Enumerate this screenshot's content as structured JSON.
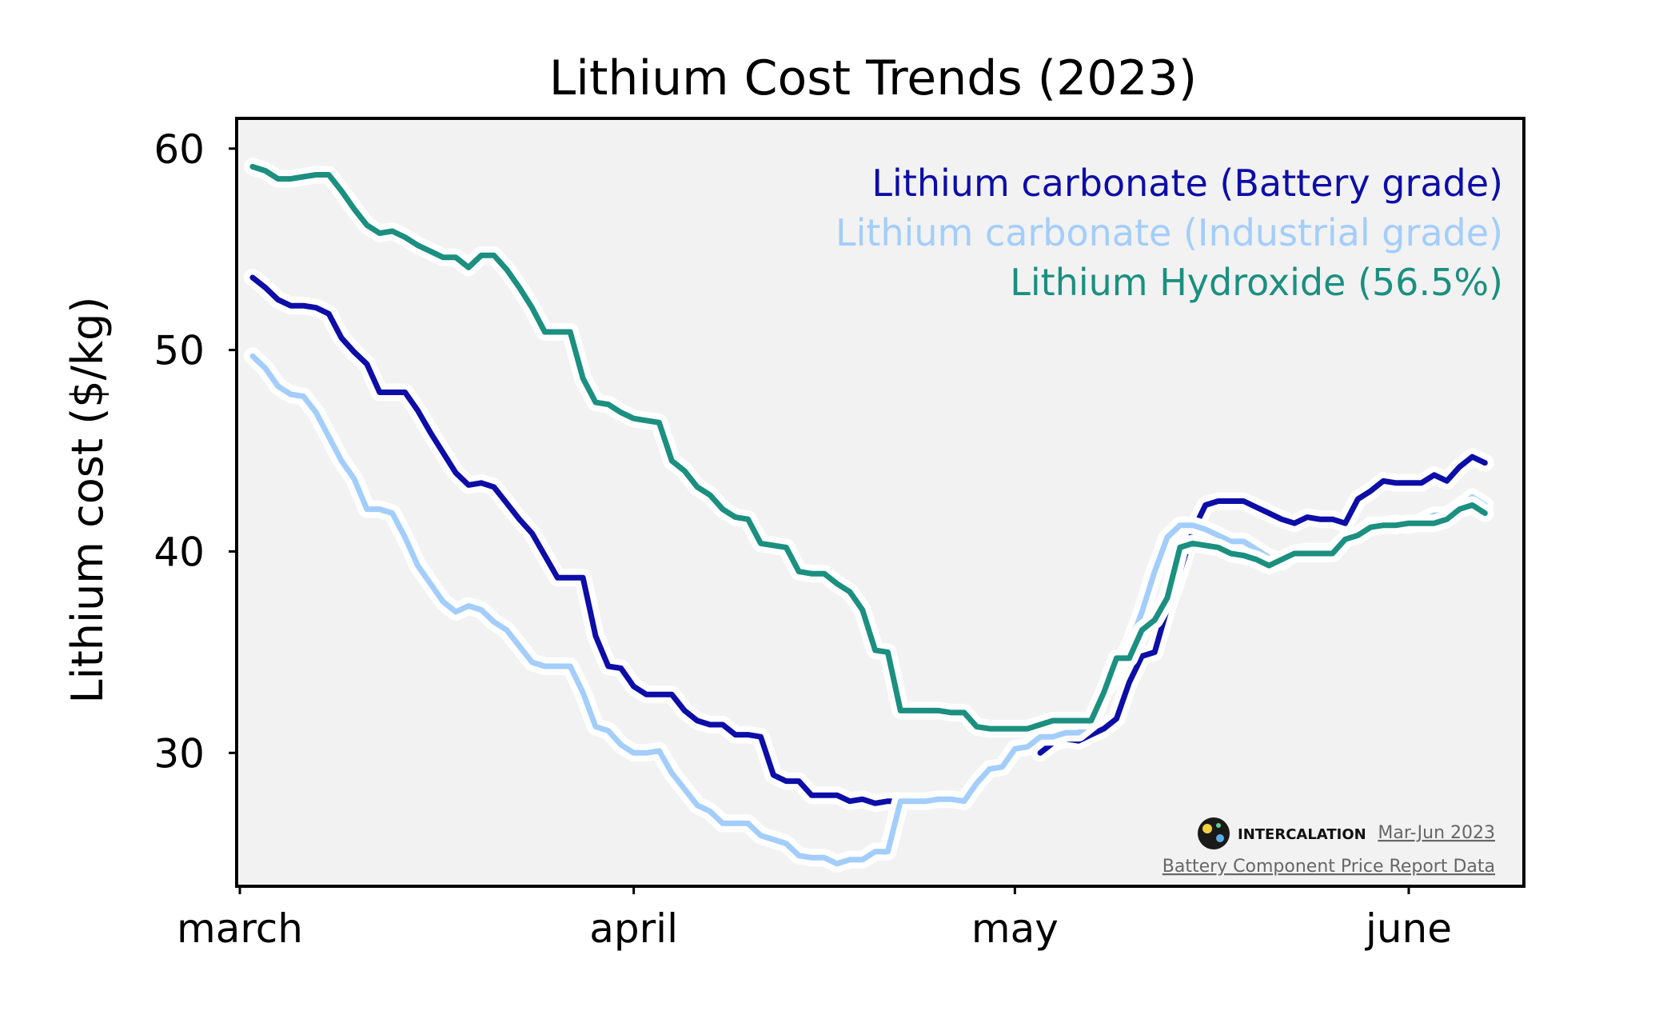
{
  "chart_data": {
    "type": "line",
    "title": "Lithium Cost Trends (2023)",
    "xlabel": "",
    "ylabel": "Lithium cost ($/kg)",
    "x_ticks": [
      {
        "label": "march",
        "day": 0
      },
      {
        "label": "april",
        "day": 31
      },
      {
        "label": "may",
        "day": 61
      },
      {
        "label": "june",
        "day": 92
      }
    ],
    "y_ticks": [
      30,
      40,
      50,
      60
    ],
    "xlim_days": [
      0,
      101
    ],
    "ylim": [
      23.5,
      61.5
    ],
    "grid": false,
    "legend_placement": "top-right",
    "series": [
      {
        "name": "Lithium carbonate (Battery grade)",
        "color": "#0d0da8",
        "points": [
          [
            1,
            53.6
          ],
          [
            2,
            53.1
          ],
          [
            3,
            52.5
          ],
          [
            4,
            52.2
          ],
          [
            5,
            52.2
          ],
          [
            6,
            52.1
          ],
          [
            7,
            51.8
          ],
          [
            8,
            50.6
          ],
          [
            9,
            49.9
          ],
          [
            10,
            49.3
          ],
          [
            11,
            47.9
          ],
          [
            12,
            47.9
          ],
          [
            13,
            47.9
          ],
          [
            14,
            47.0
          ],
          [
            15,
            45.9
          ],
          [
            16,
            44.9
          ],
          [
            17,
            43.9
          ],
          [
            18,
            43.3
          ],
          [
            19,
            43.4
          ],
          [
            20,
            43.2
          ],
          [
            21,
            42.4
          ],
          [
            22,
            41.6
          ],
          [
            23,
            40.9
          ],
          [
            24,
            39.8
          ],
          [
            25,
            38.7
          ],
          [
            26,
            38.7
          ],
          [
            27,
            38.7
          ],
          [
            28,
            35.8
          ],
          [
            29,
            34.3
          ],
          [
            30,
            34.2
          ],
          [
            31,
            33.3
          ],
          [
            32,
            32.9
          ],
          [
            33,
            32.9
          ],
          [
            34,
            32.9
          ],
          [
            35,
            32.1
          ],
          [
            36,
            31.6
          ],
          [
            37,
            31.4
          ],
          [
            38,
            31.4
          ],
          [
            39,
            30.9
          ],
          [
            40,
            30.9
          ],
          [
            41,
            30.8
          ],
          [
            42,
            28.9
          ],
          [
            43,
            28.6
          ],
          [
            44,
            28.6
          ],
          [
            45,
            27.9
          ],
          [
            46,
            27.9
          ],
          [
            47,
            27.9
          ],
          [
            48,
            27.6
          ],
          [
            49,
            27.7
          ],
          [
            50,
            27.5
          ],
          [
            51,
            27.6
          ],
          [
            52,
            27.6
          ],
          [
            63,
            30.0
          ],
          [
            64,
            30.5
          ],
          [
            65,
            30.7
          ],
          [
            66,
            30.6
          ],
          [
            67,
            30.9
          ],
          [
            68,
            31.2
          ],
          [
            69,
            31.7
          ],
          [
            70,
            33.5
          ],
          [
            71,
            34.8
          ],
          [
            72,
            35.0
          ],
          [
            73,
            37.2
          ],
          [
            74,
            39.0
          ],
          [
            75,
            41.0
          ],
          [
            76,
            42.3
          ],
          [
            77,
            42.5
          ],
          [
            78,
            42.5
          ],
          [
            79,
            42.5
          ],
          [
            80,
            42.2
          ],
          [
            81,
            41.9
          ],
          [
            82,
            41.6
          ],
          [
            83,
            41.4
          ],
          [
            84,
            41.7
          ],
          [
            85,
            41.6
          ],
          [
            86,
            41.6
          ],
          [
            87,
            41.4
          ],
          [
            88,
            42.6
          ],
          [
            89,
            43.0
          ],
          [
            90,
            43.5
          ],
          [
            91,
            43.4
          ],
          [
            92,
            43.4
          ],
          [
            93,
            43.4
          ],
          [
            94,
            43.8
          ],
          [
            95,
            43.5
          ],
          [
            96,
            44.2
          ],
          [
            97,
            44.7
          ],
          [
            98,
            44.4
          ]
        ]
      },
      {
        "name": "Lithium carbonate (Industrial grade)",
        "color": "#a3cdfb",
        "points": [
          [
            1,
            49.7
          ],
          [
            2,
            49.1
          ],
          [
            3,
            48.2
          ],
          [
            4,
            47.8
          ],
          [
            5,
            47.7
          ],
          [
            6,
            46.9
          ],
          [
            7,
            45.7
          ],
          [
            8,
            44.5
          ],
          [
            9,
            43.6
          ],
          [
            10,
            42.1
          ],
          [
            11,
            42.1
          ],
          [
            12,
            41.9
          ],
          [
            13,
            40.7
          ],
          [
            14,
            39.3
          ],
          [
            15,
            38.4
          ],
          [
            16,
            37.5
          ],
          [
            17,
            37.0
          ],
          [
            18,
            37.3
          ],
          [
            19,
            37.1
          ],
          [
            20,
            36.5
          ],
          [
            21,
            36.1
          ],
          [
            22,
            35.3
          ],
          [
            23,
            34.5
          ],
          [
            24,
            34.3
          ],
          [
            25,
            34.3
          ],
          [
            26,
            34.3
          ],
          [
            27,
            33.0
          ],
          [
            28,
            31.3
          ],
          [
            29,
            31.1
          ],
          [
            30,
            30.4
          ],
          [
            31,
            30.0
          ],
          [
            32,
            30.0
          ],
          [
            33,
            30.1
          ],
          [
            34,
            29.0
          ],
          [
            35,
            28.2
          ],
          [
            36,
            27.4
          ],
          [
            37,
            27.1
          ],
          [
            38,
            26.5
          ],
          [
            39,
            26.5
          ],
          [
            40,
            26.5
          ],
          [
            41,
            25.9
          ],
          [
            42,
            25.7
          ],
          [
            43,
            25.5
          ],
          [
            44,
            24.9
          ],
          [
            45,
            24.8
          ],
          [
            46,
            24.8
          ],
          [
            47,
            24.5
          ],
          [
            48,
            24.7
          ],
          [
            49,
            24.7
          ],
          [
            50,
            25.1
          ],
          [
            51,
            25.1
          ],
          [
            52,
            27.6
          ],
          [
            53,
            27.6
          ],
          [
            54,
            27.6
          ],
          [
            55,
            27.7
          ],
          [
            56,
            27.7
          ],
          [
            57,
            27.6
          ],
          [
            58,
            28.5
          ],
          [
            59,
            29.2
          ],
          [
            60,
            29.3
          ],
          [
            61,
            30.2
          ],
          [
            62,
            30.3
          ],
          [
            63,
            30.8
          ],
          [
            64,
            30.8
          ],
          [
            65,
            31.0
          ],
          [
            66,
            31.0
          ],
          [
            67,
            31.5
          ],
          [
            68,
            33.0
          ],
          [
            69,
            34.0
          ],
          [
            70,
            35.3
          ],
          [
            71,
            37.0
          ],
          [
            72,
            39.0
          ],
          [
            73,
            40.7
          ],
          [
            74,
            41.3
          ],
          [
            75,
            41.3
          ],
          [
            76,
            41.1
          ],
          [
            77,
            40.8
          ],
          [
            78,
            40.5
          ],
          [
            79,
            40.5
          ],
          [
            80,
            40.1
          ],
          [
            81,
            39.7
          ],
          [
            82,
            39.5
          ],
          [
            83,
            39.9
          ],
          [
            84,
            40.0
          ],
          [
            85,
            40.0
          ],
          [
            86,
            40.0
          ],
          [
            87,
            40.6
          ],
          [
            88,
            40.8
          ],
          [
            89,
            41.3
          ],
          [
            90,
            41.3
          ],
          [
            91,
            41.4
          ],
          [
            92,
            41.3
          ],
          [
            93,
            41.5
          ],
          [
            94,
            41.8
          ],
          [
            95,
            41.8
          ],
          [
            96,
            42.2
          ],
          [
            97,
            42.7
          ],
          [
            98,
            42.3
          ]
        ]
      },
      {
        "name": "Lithium Hydroxide (56.5%)",
        "color": "#1b8f80",
        "points": [
          [
            1,
            59.1
          ],
          [
            2,
            58.9
          ],
          [
            3,
            58.5
          ],
          [
            4,
            58.5
          ],
          [
            5,
            58.6
          ],
          [
            6,
            58.7
          ],
          [
            7,
            58.7
          ],
          [
            8,
            57.9
          ],
          [
            9,
            57.0
          ],
          [
            10,
            56.2
          ],
          [
            11,
            55.8
          ],
          [
            12,
            55.9
          ],
          [
            13,
            55.6
          ],
          [
            14,
            55.2
          ],
          [
            15,
            54.9
          ],
          [
            16,
            54.6
          ],
          [
            17,
            54.6
          ],
          [
            18,
            54.1
          ],
          [
            19,
            54.7
          ],
          [
            20,
            54.7
          ],
          [
            21,
            54.0
          ],
          [
            22,
            53.1
          ],
          [
            23,
            52.1
          ],
          [
            24,
            50.9
          ],
          [
            25,
            50.9
          ],
          [
            26,
            50.9
          ],
          [
            27,
            48.6
          ],
          [
            28,
            47.4
          ],
          [
            29,
            47.3
          ],
          [
            30,
            46.9
          ],
          [
            31,
            46.6
          ],
          [
            32,
            46.5
          ],
          [
            33,
            46.4
          ],
          [
            34,
            44.5
          ],
          [
            35,
            44.0
          ],
          [
            36,
            43.2
          ],
          [
            37,
            42.8
          ],
          [
            38,
            42.1
          ],
          [
            39,
            41.7
          ],
          [
            40,
            41.6
          ],
          [
            41,
            40.4
          ],
          [
            42,
            40.3
          ],
          [
            43,
            40.2
          ],
          [
            44,
            39.0
          ],
          [
            45,
            38.9
          ],
          [
            46,
            38.9
          ],
          [
            47,
            38.4
          ],
          [
            48,
            38.0
          ],
          [
            49,
            37.1
          ],
          [
            50,
            35.1
          ],
          [
            51,
            35.0
          ],
          [
            52,
            32.1
          ],
          [
            53,
            32.1
          ],
          [
            54,
            32.1
          ],
          [
            55,
            32.1
          ],
          [
            56,
            32.0
          ],
          [
            57,
            32.0
          ],
          [
            58,
            31.3
          ],
          [
            59,
            31.2
          ],
          [
            60,
            31.2
          ],
          [
            61,
            31.2
          ],
          [
            62,
            31.2
          ],
          [
            63,
            31.4
          ],
          [
            64,
            31.6
          ],
          [
            65,
            31.6
          ],
          [
            66,
            31.6
          ],
          [
            67,
            31.6
          ],
          [
            68,
            33.0
          ],
          [
            69,
            34.7
          ],
          [
            70,
            34.7
          ],
          [
            71,
            36.1
          ],
          [
            72,
            36.6
          ],
          [
            73,
            37.7
          ],
          [
            74,
            40.2
          ],
          [
            75,
            40.4
          ],
          [
            76,
            40.3
          ],
          [
            77,
            40.2
          ],
          [
            78,
            39.9
          ],
          [
            79,
            39.8
          ],
          [
            80,
            39.6
          ],
          [
            81,
            39.3
          ],
          [
            82,
            39.6
          ],
          [
            83,
            39.9
          ],
          [
            84,
            39.9
          ],
          [
            85,
            39.9
          ],
          [
            86,
            39.9
          ],
          [
            87,
            40.6
          ],
          [
            88,
            40.8
          ],
          [
            89,
            41.2
          ],
          [
            90,
            41.3
          ],
          [
            91,
            41.3
          ],
          [
            92,
            41.4
          ],
          [
            93,
            41.4
          ],
          [
            94,
            41.4
          ],
          [
            95,
            41.6
          ],
          [
            96,
            42.1
          ],
          [
            97,
            42.3
          ],
          [
            98,
            41.9
          ]
        ]
      }
    ]
  },
  "watermark": {
    "brand": "INTERCALATION",
    "date_range": "Mar-Jun 2023",
    "source": "Battery Component Price Report Data"
  },
  "colors": {
    "plot_background": "#f2f2f2",
    "axes": "#000000"
  }
}
